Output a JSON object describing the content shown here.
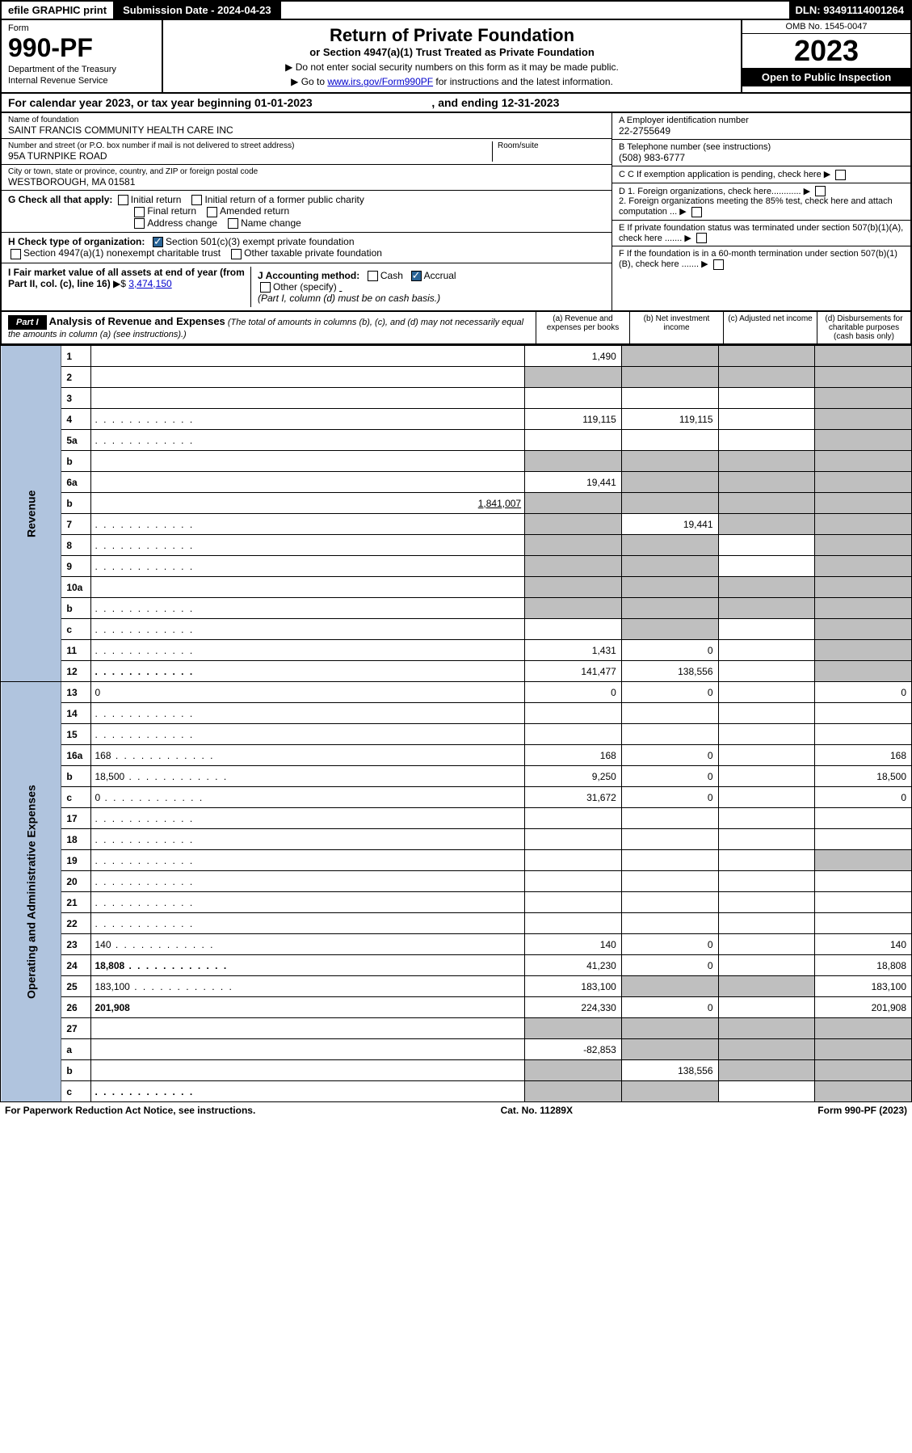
{
  "top": {
    "efile": "efile GRAPHIC print",
    "sub_date_label": "Submission Date - 2024-04-23",
    "dln": "DLN: 93491114001264"
  },
  "header": {
    "form_label": "Form",
    "form_num": "990-PF",
    "dept": "Department of the Treasury",
    "irs": "Internal Revenue Service",
    "title": "Return of Private Foundation",
    "subtitle": "or Section 4947(a)(1) Trust Treated as Private Foundation",
    "note1": "▶ Do not enter social security numbers on this form as it may be made public.",
    "note2_pre": "▶ Go to ",
    "note2_link": "www.irs.gov/Form990PF",
    "note2_post": " for instructions and the latest information.",
    "omb": "OMB No. 1545-0047",
    "year": "2023",
    "open": "Open to Public Inspection"
  },
  "cal": {
    "text": "For calendar year 2023, or tax year beginning 01-01-2023",
    "ending": ", and ending 12-31-2023"
  },
  "entity": {
    "name_label": "Name of foundation",
    "name": "SAINT FRANCIS COMMUNITY HEALTH CARE INC",
    "addr_label": "Number and street (or P.O. box number if mail is not delivered to street address)",
    "addr": "95A TURNPIKE ROAD",
    "room_label": "Room/suite",
    "city_label": "City or town, state or province, country, and ZIP or foreign postal code",
    "city": "WESTBOROUGH, MA  01581",
    "a_label": "A Employer identification number",
    "a_val": "22-2755649",
    "b_label": "B Telephone number (see instructions)",
    "b_val": "(508) 983-6777",
    "c_label": "C If exemption application is pending, check here",
    "d1": "D 1. Foreign organizations, check here............",
    "d2": "2. Foreign organizations meeting the 85% test, check here and attach computation ...",
    "e_label": "E  If private foundation status was terminated under section 507(b)(1)(A), check here .......",
    "f_label": "F  If the foundation is in a 60-month termination under section 507(b)(1)(B), check here .......",
    "g_label": "G Check all that apply:",
    "g_opts": [
      "Initial return",
      "Initial return of a former public charity",
      "Final return",
      "Amended return",
      "Address change",
      "Name change"
    ],
    "h_label": "H Check type of organization:",
    "h1": "Section 501(c)(3) exempt private foundation",
    "h2": "Section 4947(a)(1) nonexempt charitable trust",
    "h3": "Other taxable private foundation",
    "i_label": "I Fair market value of all assets at end of year (from Part II, col. (c), line 16)",
    "i_val": "3,474,150",
    "j_label": "J Accounting method:",
    "j_cash": "Cash",
    "j_accrual": "Accrual",
    "j_other": "Other (specify)",
    "j_note": "(Part I, column (d) must be on cash basis.)"
  },
  "part1": {
    "label": "Part I",
    "title": "Analysis of Revenue and Expenses",
    "note": "(The total of amounts in columns (b), (c), and (d) may not necessarily equal the amounts in column (a) (see instructions).)",
    "cols": {
      "a": "(a) Revenue and expenses per books",
      "b": "(b) Net investment income",
      "c": "(c) Adjusted net income",
      "d": "(d) Disbursements for charitable purposes (cash basis only)"
    }
  },
  "sides": {
    "rev": "Revenue",
    "exp": "Operating and Administrative Expenses"
  },
  "rows": [
    {
      "n": "1",
      "d": "",
      "a": "1,490",
      "b": "",
      "c": "",
      "sb": true,
      "sc": true,
      "sd": true
    },
    {
      "n": "2",
      "d": "",
      "a": "",
      "b": "",
      "c": "",
      "sa": true,
      "sb": true,
      "sc": true,
      "sd": true,
      "bold_not": true
    },
    {
      "n": "3",
      "d": "",
      "a": "",
      "b": "",
      "c": "",
      "sd": true
    },
    {
      "n": "4",
      "d": "",
      "a": "119,115",
      "b": "119,115",
      "c": "",
      "sd": true,
      "dots": true
    },
    {
      "n": "5a",
      "d": "",
      "a": "",
      "b": "",
      "c": "",
      "sd": true,
      "dots": true
    },
    {
      "n": "b",
      "d": "",
      "a": "",
      "b": "",
      "c": "",
      "sa": true,
      "sb": true,
      "sc": true,
      "sd": true,
      "inline": true
    },
    {
      "n": "6a",
      "d": "",
      "a": "19,441",
      "b": "",
      "c": "",
      "sb": true,
      "sc": true,
      "sd": true
    },
    {
      "n": "b",
      "d": "",
      "a": "",
      "b": "",
      "c": "",
      "sa": true,
      "sb": true,
      "sc": true,
      "sd": true,
      "inline_val": "1,841,007"
    },
    {
      "n": "7",
      "d": "",
      "a": "",
      "b": "19,441",
      "c": "",
      "sa": true,
      "sc": true,
      "sd": true,
      "dots": true
    },
    {
      "n": "8",
      "d": "",
      "a": "",
      "b": "",
      "c": "",
      "sa": true,
      "sb": true,
      "sd": true,
      "dots": true
    },
    {
      "n": "9",
      "d": "",
      "a": "",
      "b": "",
      "c": "",
      "sa": true,
      "sb": true,
      "sd": true,
      "dots": true
    },
    {
      "n": "10a",
      "d": "",
      "a": "",
      "b": "",
      "c": "",
      "sa": true,
      "sb": true,
      "sc": true,
      "sd": true,
      "inline": true
    },
    {
      "n": "b",
      "d": "",
      "a": "",
      "b": "",
      "c": "",
      "sa": true,
      "sb": true,
      "sc": true,
      "sd": true,
      "inline": true,
      "dots": true
    },
    {
      "n": "c",
      "d": "",
      "a": "",
      "b": "",
      "c": "",
      "sb": true,
      "sd": true,
      "dots": true
    },
    {
      "n": "11",
      "d": "",
      "a": "1,431",
      "b": "0",
      "c": "",
      "sd": true,
      "dots": true
    },
    {
      "n": "12",
      "d": "",
      "a": "141,477",
      "b": "138,556",
      "c": "",
      "sd": true,
      "bold": true,
      "dots": true
    },
    {
      "n": "13",
      "d": "0",
      "a": "0",
      "b": "0",
      "c": ""
    },
    {
      "n": "14",
      "d": "",
      "a": "",
      "b": "",
      "c": "",
      "dots": true
    },
    {
      "n": "15",
      "d": "",
      "a": "",
      "b": "",
      "c": "",
      "dots": true
    },
    {
      "n": "16a",
      "d": "168",
      "a": "168",
      "b": "0",
      "c": "",
      "dots": true
    },
    {
      "n": "b",
      "d": "18,500",
      "a": "9,250",
      "b": "0",
      "c": "",
      "dots": true
    },
    {
      "n": "c",
      "d": "0",
      "a": "31,672",
      "b": "0",
      "c": "",
      "dots": true
    },
    {
      "n": "17",
      "d": "",
      "a": "",
      "b": "",
      "c": "",
      "dots": true
    },
    {
      "n": "18",
      "d": "",
      "a": "",
      "b": "",
      "c": "",
      "dots": true
    },
    {
      "n": "19",
      "d": "",
      "a": "",
      "b": "",
      "c": "",
      "sd": true,
      "dots": true
    },
    {
      "n": "20",
      "d": "",
      "a": "",
      "b": "",
      "c": "",
      "dots": true
    },
    {
      "n": "21",
      "d": "",
      "a": "",
      "b": "",
      "c": "",
      "dots": true
    },
    {
      "n": "22",
      "d": "",
      "a": "",
      "b": "",
      "c": "",
      "dots": true
    },
    {
      "n": "23",
      "d": "140",
      "a": "140",
      "b": "0",
      "c": "",
      "dots": true
    },
    {
      "n": "24",
      "d": "18,808",
      "a": "41,230",
      "b": "0",
      "c": "",
      "bold": true,
      "dots": true
    },
    {
      "n": "25",
      "d": "183,100",
      "a": "183,100",
      "b": "",
      "c": "",
      "sb": true,
      "sc": true,
      "dots": true
    },
    {
      "n": "26",
      "d": "201,908",
      "a": "224,330",
      "b": "0",
      "c": "",
      "bold": true
    },
    {
      "n": "27",
      "d": "",
      "a": "",
      "b": "",
      "c": "",
      "sa": true,
      "sb": true,
      "sc": true,
      "sd": true
    },
    {
      "n": "a",
      "d": "",
      "a": "-82,853",
      "b": "",
      "c": "",
      "sb": true,
      "sc": true,
      "sd": true,
      "bold": true
    },
    {
      "n": "b",
      "d": "",
      "a": "",
      "b": "138,556",
      "c": "",
      "sa": true,
      "sc": true,
      "sd": true,
      "bold": true
    },
    {
      "n": "c",
      "d": "",
      "a": "",
      "b": "",
      "c": "",
      "sa": true,
      "sb": true,
      "sd": true,
      "bold": true,
      "dots": true
    }
  ],
  "footer": {
    "left": "For Paperwork Reduction Act Notice, see instructions.",
    "mid": "Cat. No. 11289X",
    "right": "Form 990-PF (2023)"
  }
}
